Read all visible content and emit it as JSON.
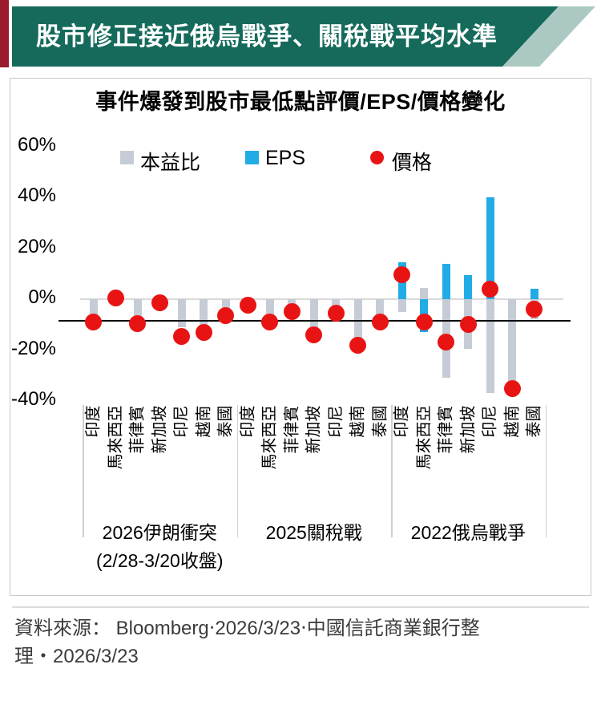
{
  "header": {
    "title": "股市修正接近俄烏戰爭、關稅戰平均水準"
  },
  "colors": {
    "banner": "#156a5b",
    "banner_accent": "#abc9c2",
    "corner_accent": "#9a1b2e",
    "pe": "#c6ccd6",
    "eps": "#22ace5",
    "price": "#e81414",
    "reference_line": "#0d0d0d",
    "zero_line": "#d9d9d9"
  },
  "chart_data": {
    "type": "bar",
    "title": "事件爆發到股市最低點評價/EPS/價格變化",
    "series_names": [
      "本益比",
      "EPS",
      "價格"
    ],
    "legend_position": "top",
    "unit": "%",
    "y_ticks": [
      60,
      40,
      20,
      0,
      -20,
      -40
    ],
    "y_tick_labels": [
      "60%",
      "40%",
      "20%",
      "0%",
      "-20%",
      "-40%"
    ],
    "ylim": [
      -45,
      62
    ],
    "reference_line_pct": -8.5,
    "categories": [
      "印度",
      "馬來西亞",
      "菲律賓",
      "新加坡",
      "印尼",
      "越南",
      "泰國"
    ],
    "groups": [
      {
        "label": "2026伊朗衝突",
        "sublabel": "(2/28-3/20收盤)",
        "pe": [
          -6,
          0,
          -6.5,
          -2,
          -11,
          -11.5,
          -7.5
        ],
        "eps": [
          0,
          0,
          0,
          0,
          0,
          0,
          0
        ],
        "price": [
          -9,
          0.5,
          -9.5,
          -1.5,
          -14.5,
          -13,
          -6.5
        ]
      },
      {
        "label": "2025關稅戰",
        "sublabel": "",
        "pe": [
          0,
          -8.5,
          -7,
          -12.5,
          -7,
          -17,
          -8.5
        ],
        "eps": [
          0,
          0,
          0,
          0,
          0,
          0,
          0
        ],
        "price": [
          -2.5,
          -9,
          -5,
          -14,
          -5.5,
          -18,
          -9
        ]
      },
      {
        "label": "2022俄烏戰爭",
        "sublabel": "",
        "pe": [
          -5,
          4.5,
          -31,
          -19.5,
          -37,
          -33,
          -8
        ],
        "eps": [
          14.5,
          -13,
          14,
          9.5,
          40,
          0,
          4
        ],
        "price": [
          9.5,
          -9,
          -17,
          -10,
          4,
          -35,
          -4
        ]
      }
    ]
  },
  "footer": {
    "line1": "資料來源： Bloomberg‧2026/3/23‧中國信託商業銀行整",
    "line2": "理‧2026/3/23"
  }
}
